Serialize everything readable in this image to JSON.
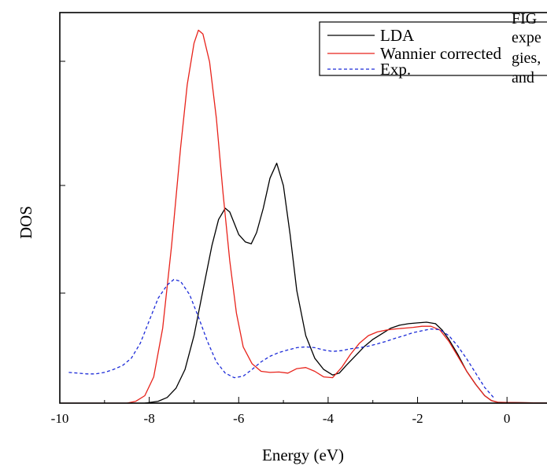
{
  "chart_data": {
    "type": "line",
    "title": "",
    "xlabel": "Energy (eV)",
    "ylabel": "DOS",
    "xlim": [
      -10,
      1
    ],
    "ylim": [
      0,
      1.0
    ],
    "x_ticks": [
      -10,
      -8,
      -6,
      -4,
      -2,
      0
    ],
    "x_tick_labels": [
      "-10",
      "-8",
      "-6",
      "-4",
      "-2",
      "0"
    ],
    "y_tick_labels_shown": false,
    "grid": false,
    "legend_position": "top-right",
    "series": [
      {
        "name": "LDA",
        "color": "#000000",
        "dash": "solid",
        "x": [
          -8.1,
          -7.8,
          -7.6,
          -7.4,
          -7.2,
          -7.0,
          -6.8,
          -6.6,
          -6.45,
          -6.3,
          -6.2,
          -6.1,
          -6.0,
          -5.85,
          -5.72,
          -5.6,
          -5.45,
          -5.3,
          -5.15,
          -5.0,
          -4.85,
          -4.7,
          -4.5,
          -4.3,
          -4.1,
          -3.9,
          -3.75,
          -3.6,
          -3.4,
          -3.2,
          -3.0,
          -2.8,
          -2.6,
          -2.4,
          -2.2,
          -2.0,
          -1.8,
          -1.6,
          -1.45,
          -1.3,
          -1.1,
          -0.9,
          -0.7,
          -0.5,
          -0.35,
          -0.2,
          1.0
        ],
        "y": [
          0.0,
          0.005,
          0.015,
          0.04,
          0.09,
          0.18,
          0.3,
          0.42,
          0.49,
          0.52,
          0.51,
          0.48,
          0.45,
          0.43,
          0.425,
          0.455,
          0.52,
          0.6,
          0.64,
          0.58,
          0.45,
          0.3,
          0.18,
          0.12,
          0.09,
          0.075,
          0.08,
          0.1,
          0.125,
          0.15,
          0.17,
          0.185,
          0.2,
          0.208,
          0.212,
          0.214,
          0.216,
          0.212,
          0.195,
          0.17,
          0.13,
          0.085,
          0.05,
          0.02,
          0.007,
          0.002,
          0.0
        ]
      },
      {
        "name": "Wannier corrected",
        "color": "#e8231b",
        "dash": "solid",
        "x": [
          -10.0,
          -8.5,
          -8.3,
          -8.1,
          -7.9,
          -7.7,
          -7.5,
          -7.3,
          -7.15,
          -7.0,
          -6.9,
          -6.8,
          -6.65,
          -6.5,
          -6.35,
          -6.2,
          -6.05,
          -5.9,
          -5.7,
          -5.5,
          -5.3,
          -5.1,
          -4.9,
          -4.7,
          -4.5,
          -4.3,
          -4.1,
          -3.9,
          -3.7,
          -3.5,
          -3.3,
          -3.1,
          -2.9,
          -2.7,
          -2.5,
          -2.3,
          -2.1,
          -1.9,
          -1.7,
          -1.5,
          -1.3,
          -1.1,
          -0.9,
          -0.7,
          -0.5,
          -0.35,
          -0.2,
          1.0
        ],
        "y": [
          0.0,
          0.0,
          0.005,
          0.02,
          0.07,
          0.2,
          0.42,
          0.68,
          0.85,
          0.96,
          0.995,
          0.985,
          0.91,
          0.76,
          0.56,
          0.38,
          0.24,
          0.15,
          0.105,
          0.085,
          0.082,
          0.083,
          0.08,
          0.092,
          0.095,
          0.085,
          0.07,
          0.068,
          0.095,
          0.13,
          0.16,
          0.18,
          0.19,
          0.195,
          0.198,
          0.2,
          0.202,
          0.205,
          0.205,
          0.195,
          0.165,
          0.125,
          0.085,
          0.05,
          0.02,
          0.007,
          0.002,
          0.0
        ]
      },
      {
        "name": "Exp.",
        "color": "#1c2bd8",
        "dash": "dashed",
        "x": [
          -9.8,
          -9.6,
          -9.4,
          -9.2,
          -9.0,
          -8.8,
          -8.6,
          -8.4,
          -8.2,
          -8.0,
          -7.8,
          -7.6,
          -7.45,
          -7.3,
          -7.1,
          -6.9,
          -6.7,
          -6.5,
          -6.3,
          -6.1,
          -5.9,
          -5.7,
          -5.5,
          -5.3,
          -5.1,
          -4.9,
          -4.7,
          -4.5,
          -4.3,
          -4.1,
          -3.9,
          -3.7,
          -3.5,
          -3.3,
          -3.1,
          -2.9,
          -2.7,
          -2.5,
          -2.3,
          -2.1,
          -1.9,
          -1.7,
          -1.5,
          -1.3,
          -1.1,
          -0.9,
          -0.7,
          -0.5,
          -0.3
        ],
        "y": [
          0.082,
          0.08,
          0.078,
          0.078,
          0.082,
          0.09,
          0.1,
          0.12,
          0.16,
          0.22,
          0.28,
          0.315,
          0.33,
          0.325,
          0.29,
          0.23,
          0.165,
          0.11,
          0.08,
          0.068,
          0.072,
          0.09,
          0.11,
          0.125,
          0.135,
          0.142,
          0.148,
          0.15,
          0.148,
          0.142,
          0.138,
          0.14,
          0.145,
          0.148,
          0.152,
          0.158,
          0.165,
          0.173,
          0.18,
          0.188,
          0.193,
          0.198,
          0.196,
          0.18,
          0.152,
          0.118,
          0.08,
          0.042,
          0.015
        ]
      }
    ]
  },
  "caption": {
    "lines": [
      "FIG",
      "expe",
      "gies,",
      "and"
    ]
  }
}
